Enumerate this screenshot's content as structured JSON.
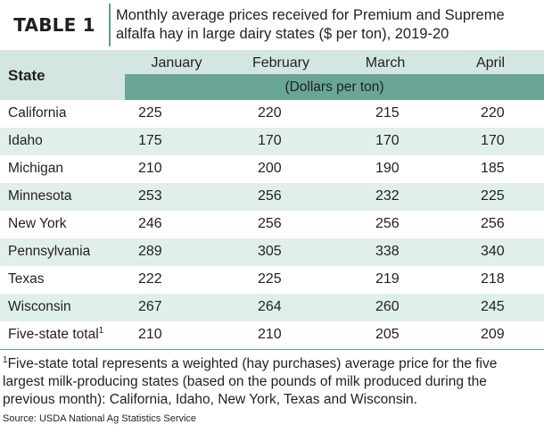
{
  "header": {
    "badge": "TABLE 1",
    "caption": "Monthly average prices received for Premium and Supreme alfalfa hay in large dairy states ($ per ton), 2019-20"
  },
  "table": {
    "state_header": "State",
    "months": [
      "January",
      "February",
      "March",
      "April"
    ],
    "units": "(Dollars per ton)",
    "rows": [
      {
        "state": "California",
        "values": [
          "225",
          "220",
          "215",
          "220"
        ]
      },
      {
        "state": "Idaho",
        "values": [
          "175",
          "170",
          "170",
          "170"
        ]
      },
      {
        "state": "Michigan",
        "values": [
          "210",
          "200",
          "190",
          "185"
        ]
      },
      {
        "state": "Minnesota",
        "values": [
          "253",
          "256",
          "232",
          "225"
        ]
      },
      {
        "state": "New York",
        "values": [
          "246",
          "256",
          "256",
          "256"
        ]
      },
      {
        "state": "Pennsylvania",
        "values": [
          "289",
          "305",
          "338",
          "340"
        ]
      },
      {
        "state": "Texas",
        "values": [
          "222",
          "225",
          "219",
          "218"
        ]
      },
      {
        "state": "Wisconsin",
        "values": [
          "267",
          "264",
          "260",
          "245"
        ]
      },
      {
        "state": "Five-state total",
        "values": [
          "210",
          "210",
          "205",
          "209"
        ]
      }
    ],
    "total_marker": "1"
  },
  "footnote": {
    "marker": "1",
    "text": "Five-state total represents a weighted (hay purchases) average price for the five largest milk-producing states (based on the pounds of milk produced during the previous month): California, Idaho, New York, Texas and Wisconsin."
  },
  "source": "Source: USDA National Ag Statistics Service",
  "colors": {
    "header_band": "#d3e6e2",
    "units_band": "#6aa698",
    "row_shade": "#e0efec",
    "accent_rule": "#5e9e8f"
  }
}
